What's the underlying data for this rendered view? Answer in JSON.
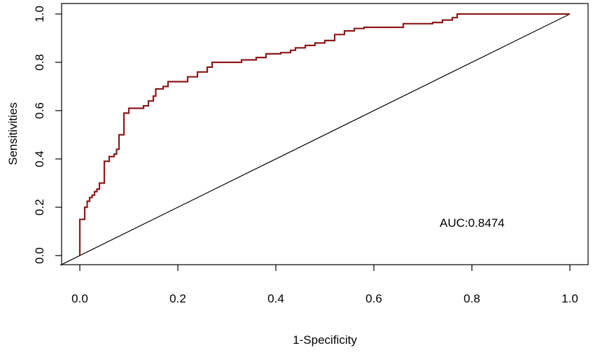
{
  "chart_data": {
    "type": "line",
    "xlabel": "1-Specificity",
    "ylabel": "Sensitivities",
    "xlim": [
      0,
      1
    ],
    "ylim": [
      0,
      1
    ],
    "x_ticks": [
      "0.0",
      "0.2",
      "0.4",
      "0.6",
      "0.8",
      "1.0"
    ],
    "y_ticks": [
      "0.0",
      "0.2",
      "0.4",
      "0.6",
      "0.8",
      "1.0"
    ],
    "annotation": "AUC:0.8474",
    "grid": false,
    "colors": {
      "roc": "#8b1a1a",
      "reference": "#000000"
    },
    "series": [
      {
        "values": [
          [
            0.0,
            0.0
          ],
          [
            0.0,
            0.15
          ],
          [
            0.01,
            0.16
          ],
          [
            0.01,
            0.2
          ],
          [
            0.015,
            0.2
          ],
          [
            0.015,
            0.225
          ],
          [
            0.02,
            0.24
          ],
          [
            0.025,
            0.25
          ],
          [
            0.03,
            0.265
          ],
          [
            0.035,
            0.275
          ],
          [
            0.04,
            0.3
          ],
          [
            0.05,
            0.3
          ],
          [
            0.05,
            0.39
          ],
          [
            0.06,
            0.41
          ],
          [
            0.07,
            0.42
          ],
          [
            0.075,
            0.44
          ],
          [
            0.08,
            0.5
          ],
          [
            0.085,
            0.5
          ],
          [
            0.09,
            0.59
          ],
          [
            0.1,
            0.61
          ],
          [
            0.12,
            0.61
          ],
          [
            0.13,
            0.62
          ],
          [
            0.14,
            0.64
          ],
          [
            0.15,
            0.66
          ],
          [
            0.155,
            0.69
          ],
          [
            0.17,
            0.7
          ],
          [
            0.18,
            0.72
          ],
          [
            0.2,
            0.72
          ],
          [
            0.22,
            0.74
          ],
          [
            0.24,
            0.76
          ],
          [
            0.26,
            0.78
          ],
          [
            0.27,
            0.8
          ],
          [
            0.31,
            0.8
          ],
          [
            0.33,
            0.81
          ],
          [
            0.36,
            0.82
          ],
          [
            0.38,
            0.835
          ],
          [
            0.41,
            0.84
          ],
          [
            0.43,
            0.85
          ],
          [
            0.44,
            0.86
          ],
          [
            0.46,
            0.87
          ],
          [
            0.48,
            0.88
          ],
          [
            0.5,
            0.89
          ],
          [
            0.52,
            0.915
          ],
          [
            0.54,
            0.93
          ],
          [
            0.56,
            0.94
          ],
          [
            0.58,
            0.945
          ],
          [
            0.65,
            0.945
          ],
          [
            0.66,
            0.96
          ],
          [
            0.72,
            0.965
          ],
          [
            0.74,
            0.975
          ],
          [
            0.76,
            0.985
          ],
          [
            0.77,
            1.0
          ],
          [
            1.0,
            1.0
          ]
        ]
      }
    ],
    "reference_line": [
      [
        -0.04,
        -0.04
      ],
      [
        1.0,
        1.0
      ]
    ]
  }
}
